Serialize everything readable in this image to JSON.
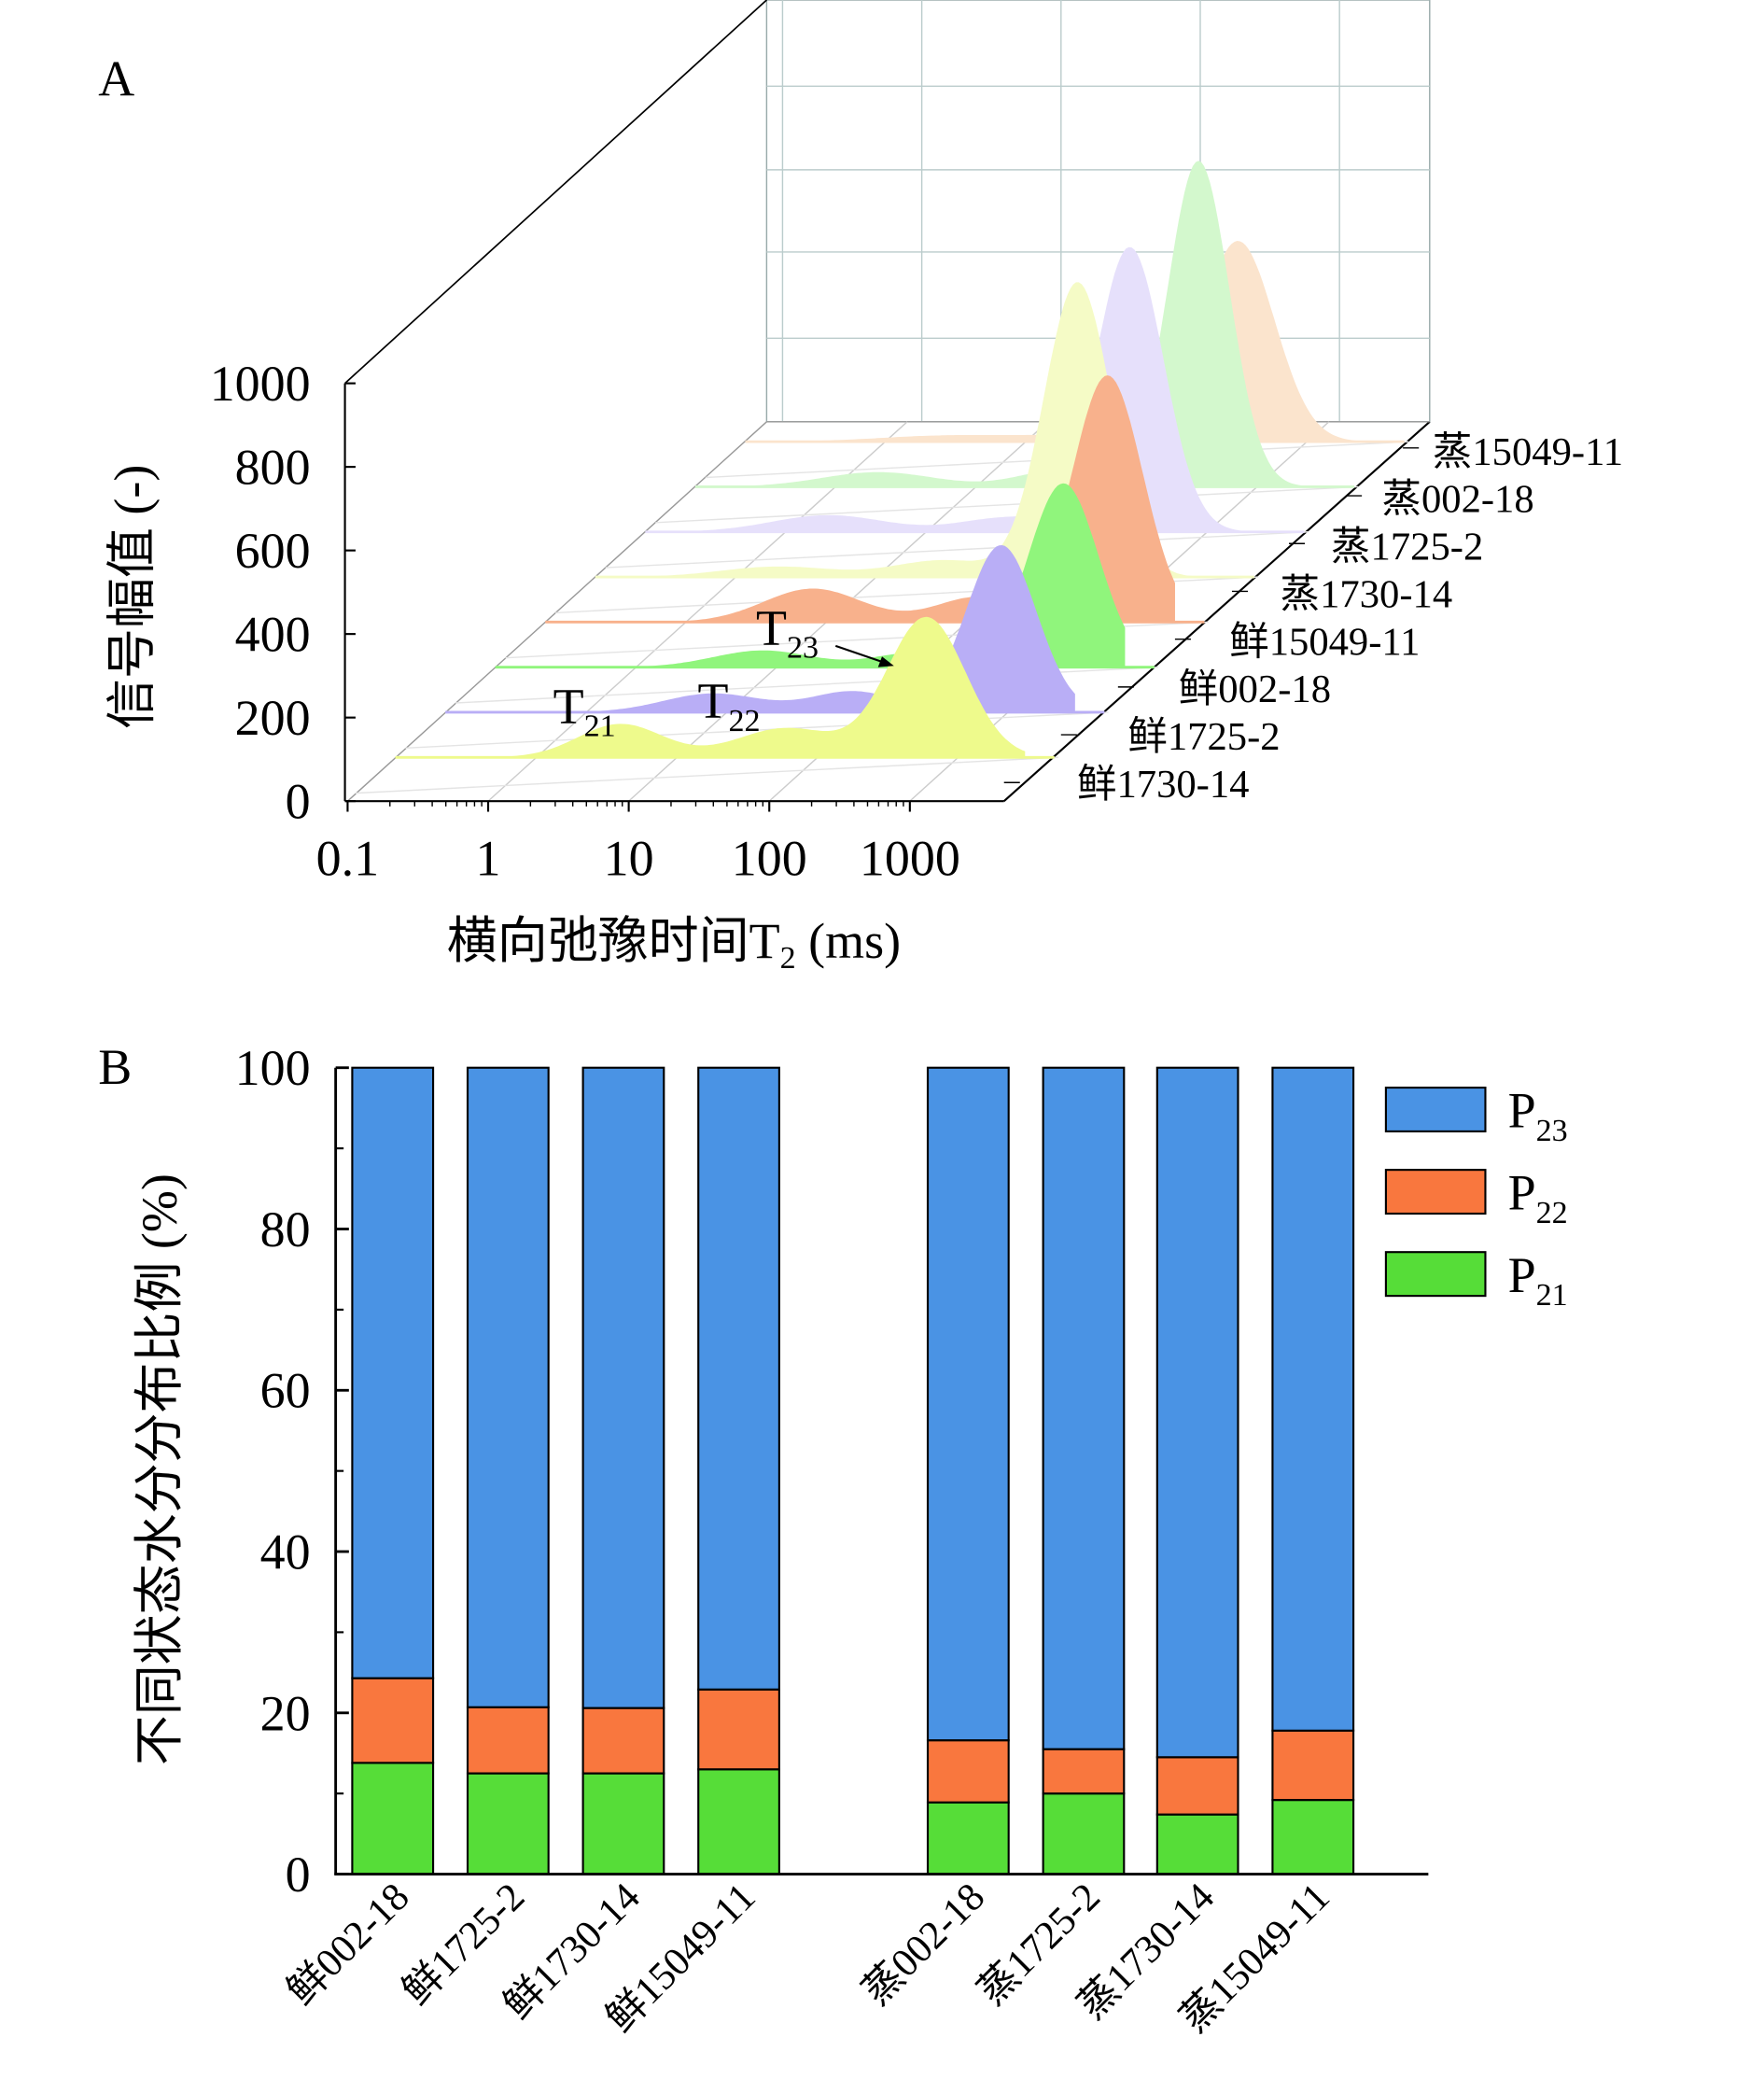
{
  "chart_data": [
    {
      "panel_label": "A",
      "type": "area",
      "subtype": "3d-waterfall",
      "xlabel": "横向弛豫时间T",
      "xlabel_sub": "2",
      "xlabel_unit": " (ms)",
      "ylabel": "信号幅值 (-)",
      "x_scale": "log",
      "xlim": [
        0.1,
        3000
      ],
      "ylim": [
        0,
        1000
      ],
      "x_ticks": [
        "0.1",
        "1",
        "10",
        "100",
        "1000"
      ],
      "y_ticks": [
        "0",
        "200",
        "400",
        "600",
        "800",
        "1000"
      ],
      "annotations": [
        {
          "text": "T",
          "sub": "21"
        },
        {
          "text": "T",
          "sub": "22"
        },
        {
          "text": "T",
          "sub": "23"
        }
      ],
      "series": [
        {
          "name": "鲜1730-14",
          "color": "#eefa8c",
          "peaks": [
            {
              "t": 4,
              "amp": 80,
              "w": 0.3
            },
            {
              "t": 60,
              "amp": 70,
              "w": 0.35
            },
            {
              "t": 600,
              "amp": 335,
              "w": 0.28
            }
          ]
        },
        {
          "name": "鲜1725-2",
          "color": "#b9aef6",
          "peaks": [
            {
              "t": 8,
              "amp": 45,
              "w": 0.35
            },
            {
              "t": 80,
              "amp": 50,
              "w": 0.3
            },
            {
              "t": 900,
              "amp": 400,
              "w": 0.25
            }
          ]
        },
        {
          "name": "鲜002-18",
          "color": "#90f57c",
          "peaks": [
            {
              "t": 8,
              "amp": 40,
              "w": 0.35
            },
            {
              "t": 100,
              "amp": 35,
              "w": 0.3
            },
            {
              "t": 1100,
              "amp": 440,
              "w": 0.25
            }
          ]
        },
        {
          "name": "鲜15049-11",
          "color": "#f8b18c",
          "peaks": [
            {
              "t": 8,
              "amp": 80,
              "w": 0.35
            },
            {
              "t": 120,
              "amp": 60,
              "w": 0.3
            },
            {
              "t": 1000,
              "amp": 590,
              "w": 0.25
            }
          ]
        },
        {
          "name": "蒸1730-14",
          "color": "#f5fbc6",
          "peaks": [
            {
              "t": 2,
              "amp": 25,
              "w": 0.4
            },
            {
              "t": 30,
              "amp": 40,
              "w": 0.35
            },
            {
              "t": 270,
              "amp": 705,
              "w": 0.24
            }
          ]
        },
        {
          "name": "蒸1725-2",
          "color": "#e6e0fb",
          "peaks": [
            {
              "t": 2,
              "amp": 40,
              "w": 0.4
            },
            {
              "t": 40,
              "amp": 35,
              "w": 0.35
            },
            {
              "t": 280,
              "amp": 680,
              "w": 0.24
            }
          ]
        },
        {
          "name": "蒸002-18",
          "color": "#d3f8cd",
          "peaks": [
            {
              "t": 2,
              "amp": 35,
              "w": 0.4
            },
            {
              "t": 40,
              "amp": 40,
              "w": 0.3
            },
            {
              "t": 380,
              "amp": 780,
              "w": 0.22
            }
          ]
        },
        {
          "name": "蒸15049-11",
          "color": "#fbe4cd",
          "peaks": [
            {
              "t": 3,
              "amp": 15,
              "w": 0.5
            },
            {
              "t": 30,
              "amp": 15,
              "w": 0.4
            },
            {
              "t": 320,
              "amp": 480,
              "w": 0.26
            }
          ]
        }
      ]
    },
    {
      "panel_label": "B",
      "type": "bar",
      "stacked": true,
      "ylabel": "不同状态水分分布比例 (%)",
      "ylim": [
        0,
        100
      ],
      "y_ticks": [
        "0",
        "20",
        "40",
        "60",
        "80",
        "100"
      ],
      "legend_position": "top-right",
      "categories": [
        "鲜002-18",
        "鲜1725-2",
        "鲜1730-14",
        "鲜15049-11",
        "蒸002-18",
        "蒸1725-2",
        "蒸1730-14",
        "蒸15049-11"
      ],
      "series": [
        {
          "name": "P",
          "sub": "21",
          "color": "#56dd38",
          "values": [
            13.8,
            12.5,
            12.5,
            13.0,
            8.9,
            10.0,
            7.4,
            9.2
          ]
        },
        {
          "name": "P",
          "sub": "22",
          "color": "#f9773e",
          "values": [
            10.5,
            8.2,
            8.1,
            9.9,
            7.7,
            5.5,
            7.1,
            8.6
          ]
        },
        {
          "name": "P",
          "sub": "23",
          "color": "#4a93e4",
          "values": [
            75.7,
            79.3,
            79.4,
            77.1,
            83.4,
            84.5,
            85.5,
            82.2
          ]
        }
      ]
    }
  ]
}
